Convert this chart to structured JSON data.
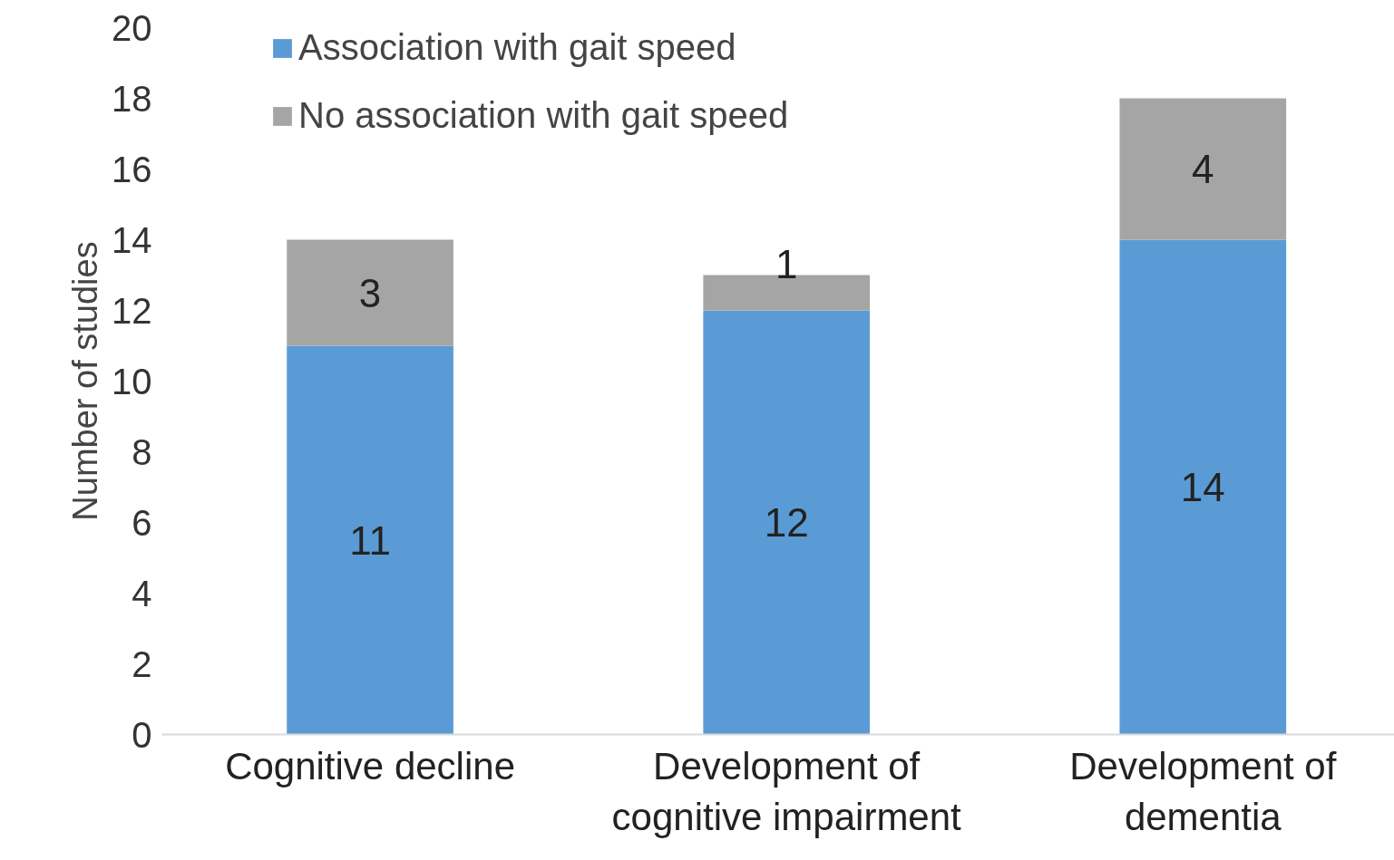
{
  "chart_data": {
    "type": "bar",
    "stacked": true,
    "ylabel": "Number of studies",
    "categories": [
      "Cognitive decline",
      "Development of cognitive impairment",
      "Development of dementia"
    ],
    "series": [
      {
        "name": "Association with gait speed",
        "color": "#5b9bd5",
        "values": [
          11,
          12,
          14
        ]
      },
      {
        "name": "No association with gait speed",
        "color": "#a5a5a5",
        "values": [
          3,
          1,
          4
        ]
      }
    ],
    "ylim": [
      0,
      20
    ],
    "yticks": [
      0,
      2,
      4,
      6,
      8,
      10,
      12,
      14,
      16,
      18,
      20
    ],
    "data_labels": true,
    "grid": false,
    "legend": "top left"
  }
}
